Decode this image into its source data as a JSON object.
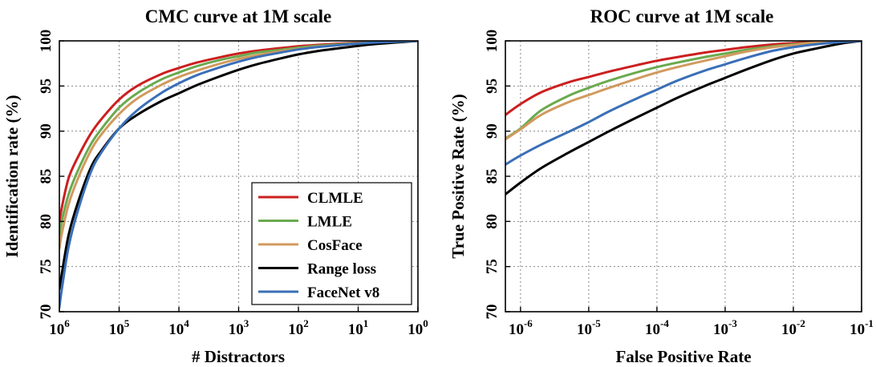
{
  "chart_data": [
    {
      "type": "line",
      "title": "CMC curve at 1M scale",
      "xlabel": "# Distractors",
      "ylabel": "Identification rate (%)",
      "xscale": "log-reversed",
      "xlim": [
        1000000,
        1
      ],
      "ylim": [
        70,
        100
      ],
      "x_ticks": [
        {
          "base": "10",
          "exp": "6"
        },
        {
          "base": "10",
          "exp": "5"
        },
        {
          "base": "10",
          "exp": "4"
        },
        {
          "base": "10",
          "exp": "3"
        },
        {
          "base": "10",
          "exp": "2"
        },
        {
          "base": "10",
          "exp": "1"
        },
        {
          "base": "10",
          "exp": "0"
        }
      ],
      "y_ticks": [
        "70",
        "75",
        "80",
        "85",
        "90",
        "95",
        "100"
      ],
      "grid": true,
      "legend": "bottom-right",
      "x": [
        1000000,
        900000,
        700000,
        500000,
        300000,
        200000,
        100000,
        50000,
        20000,
        10000,
        5000,
        2000,
        1000,
        500,
        200,
        100,
        50,
        20,
        10,
        5,
        2,
        1
      ],
      "series": [
        {
          "name": "CLMLE",
          "color": "#cc1f1f",
          "values": [
            79.9,
            81.7,
            84.8,
            87.0,
            89.7,
            91.3,
            93.5,
            95.0,
            96.3,
            97.0,
            97.6,
            98.2,
            98.6,
            98.9,
            99.2,
            99.4,
            99.55,
            99.7,
            99.8,
            99.87,
            99.95,
            100
          ]
        },
        {
          "name": "LMLE",
          "color": "#6aaa4f",
          "values": [
            78.5,
            80.2,
            83.0,
            85.5,
            88.5,
            90.2,
            92.6,
            94.2,
            95.7,
            96.5,
            97.2,
            97.9,
            98.3,
            98.7,
            99.0,
            99.25,
            99.45,
            99.62,
            99.75,
            99.85,
            99.94,
            100
          ]
        },
        {
          "name": "CosFace",
          "color": "#d19a5e",
          "values": [
            77.0,
            78.8,
            81.9,
            84.6,
            87.8,
            89.6,
            91.9,
            93.6,
            95.1,
            96.0,
            96.7,
            97.5,
            98.0,
            98.4,
            98.85,
            99.1,
            99.35,
            99.55,
            99.7,
            99.8,
            99.92,
            100
          ]
        },
        {
          "name": "Range loss",
          "color": "#000000",
          "values": [
            72.5,
            74.4,
            78.5,
            81.9,
            85.9,
            87.8,
            90.3,
            91.8,
            93.3,
            94.2,
            95.1,
            96.1,
            96.8,
            97.4,
            98.05,
            98.5,
            98.85,
            99.2,
            99.45,
            99.65,
            99.85,
            100
          ]
        },
        {
          "name": "FaceNet v8",
          "color": "#3a6fb7",
          "values": [
            70.5,
            72.7,
            77.2,
            81.0,
            85.4,
            87.6,
            90.3,
            92.3,
            94.2,
            95.3,
            96.2,
            97.1,
            97.7,
            98.2,
            98.7,
            99.05,
            99.3,
            99.55,
            99.7,
            99.82,
            99.93,
            100
          ]
        }
      ]
    },
    {
      "type": "line",
      "title": "ROC curve at 1M scale",
      "xlabel": "False Positive Rate",
      "ylabel": "True Positive Rate (%)",
      "xscale": "log",
      "xlim": [
        6e-07,
        0.1
      ],
      "ylim": [
        70,
        100
      ],
      "x_ticks": [
        {
          "base": "10",
          "exp": "-6"
        },
        {
          "base": "10",
          "exp": "-5"
        },
        {
          "base": "10",
          "exp": "-4"
        },
        {
          "base": "10",
          "exp": "-3"
        },
        {
          "base": "10",
          "exp": "-2"
        },
        {
          "base": "10",
          "exp": "-1"
        }
      ],
      "y_ticks": [
        "70",
        "75",
        "80",
        "85",
        "90",
        "95",
        "100"
      ],
      "grid": true,
      "x": [
        6e-07,
        1e-06,
        2e-06,
        5e-06,
        1e-05,
        2e-05,
        5e-05,
        0.0001,
        0.0002,
        0.0005,
        0.001,
        0.002,
        0.005,
        0.01,
        0.02,
        0.05,
        0.1
      ],
      "series": [
        {
          "name": "CLMLE",
          "color": "#cc1f1f",
          "values": [
            91.8,
            93.0,
            94.3,
            95.4,
            96.0,
            96.6,
            97.3,
            97.8,
            98.2,
            98.7,
            99.0,
            99.3,
            99.6,
            99.75,
            99.88,
            99.97,
            100
          ]
        },
        {
          "name": "LMLE",
          "color": "#6aaa4f",
          "values": [
            89.2,
            90.3,
            92.3,
            93.9,
            94.8,
            95.6,
            96.5,
            97.1,
            97.6,
            98.2,
            98.6,
            99.0,
            99.4,
            99.62,
            99.8,
            99.95,
            100
          ]
        },
        {
          "name": "CosFace",
          "color": "#d19a5e",
          "values": [
            89.1,
            90.2,
            91.8,
            93.2,
            94.0,
            94.8,
            95.8,
            96.5,
            97.1,
            97.8,
            98.3,
            98.8,
            99.3,
            99.55,
            99.78,
            99.94,
            100
          ]
        },
        {
          "name": "Range loss",
          "color": "#000000",
          "values": [
            83.0,
            84.3,
            85.9,
            87.6,
            88.8,
            90.0,
            91.5,
            92.6,
            93.7,
            95.0,
            95.9,
            96.8,
            97.9,
            98.6,
            99.1,
            99.7,
            100
          ]
        },
        {
          "name": "FaceNet v8",
          "color": "#3a6fb7",
          "values": [
            86.3,
            87.3,
            88.5,
            89.9,
            91.0,
            92.2,
            93.6,
            94.6,
            95.6,
            96.7,
            97.4,
            98.1,
            98.9,
            99.3,
            99.6,
            99.88,
            100
          ]
        }
      ]
    }
  ]
}
